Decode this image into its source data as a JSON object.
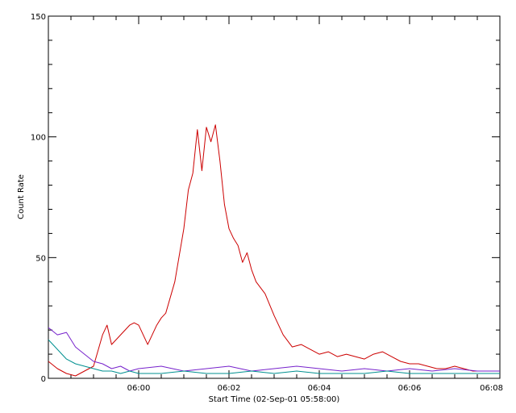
{
  "chart_data": {
    "type": "line",
    "xlabel": "Start Time (02-Sep-01 05:58:00)",
    "ylabel": "Count Rate",
    "ylim": [
      0,
      150
    ],
    "xlim_minutes": [
      0,
      10
    ],
    "x_ticks": [
      {
        "minute": 2,
        "label": "06:00"
      },
      {
        "minute": 4,
        "label": "06:02"
      },
      {
        "minute": 6,
        "label": "06:04"
      },
      {
        "minute": 8,
        "label": "06:06"
      },
      {
        "minute": 10,
        "label": "06:08"
      }
    ],
    "y_ticks": [
      {
        "value": 0,
        "label": "0"
      },
      {
        "value": 50,
        "label": "50"
      },
      {
        "value": 100,
        "label": "100"
      },
      {
        "value": 150,
        "label": "150"
      }
    ],
    "series": [
      {
        "color": "#cc0000",
        "x": [
          0.0,
          0.2,
          0.4,
          0.6,
          0.8,
          1.0,
          1.2,
          1.3,
          1.4,
          1.6,
          1.8,
          1.9,
          2.0,
          2.2,
          2.4,
          2.5,
          2.6,
          2.8,
          3.0,
          3.1,
          3.2,
          3.3,
          3.4,
          3.5,
          3.6,
          3.7,
          3.8,
          3.9,
          4.0,
          4.1,
          4.2,
          4.3,
          4.4,
          4.5,
          4.6,
          4.8,
          5.0,
          5.2,
          5.4,
          5.6,
          5.8,
          6.0,
          6.2,
          6.4,
          6.6,
          6.8,
          7.0,
          7.2,
          7.4,
          7.6,
          7.8,
          8.0,
          8.2,
          8.4,
          8.6,
          8.8,
          9.0,
          9.2,
          9.4,
          9.6,
          9.8,
          10.0
        ],
        "values": [
          7,
          4,
          2,
          1,
          3,
          5,
          18,
          22,
          14,
          18,
          22,
          23,
          22,
          14,
          22,
          25,
          27,
          40,
          62,
          78,
          85,
          103,
          86,
          104,
          98,
          105,
          90,
          72,
          62,
          58,
          55,
          48,
          52,
          45,
          40,
          35,
          26,
          18,
          13,
          14,
          12,
          10,
          11,
          9,
          10,
          9,
          8,
          10,
          11,
          9,
          7,
          6,
          6,
          5,
          4,
          4,
          5,
          4,
          3,
          3,
          3,
          3
        ]
      },
      {
        "color": "#7722cc",
        "x": [
          0.0,
          0.2,
          0.4,
          0.6,
          0.8,
          1.0,
          1.2,
          1.4,
          1.6,
          1.8,
          2.0,
          2.5,
          3.0,
          3.5,
          4.0,
          4.5,
          5.0,
          5.5,
          6.0,
          6.5,
          7.0,
          7.5,
          8.0,
          8.5,
          9.0,
          9.5,
          10.0
        ],
        "values": [
          21,
          18,
          19,
          13,
          10,
          7,
          6,
          4,
          5,
          3,
          4,
          5,
          3,
          4,
          5,
          3,
          4,
          5,
          4,
          3,
          4,
          3,
          4,
          3,
          4,
          3,
          3
        ]
      },
      {
        "color": "#009090",
        "x": [
          0.0,
          0.2,
          0.4,
          0.6,
          0.8,
          1.0,
          1.2,
          1.4,
          1.6,
          1.8,
          2.0,
          2.5,
          3.0,
          3.5,
          4.0,
          4.5,
          5.0,
          5.5,
          6.0,
          6.5,
          7.0,
          7.5,
          8.0,
          8.5,
          9.0,
          9.5,
          10.0
        ],
        "values": [
          16,
          12,
          8,
          6,
          5,
          4,
          3,
          3,
          2,
          3,
          2,
          2,
          3,
          2,
          2,
          3,
          2,
          3,
          2,
          2,
          2,
          3,
          2,
          2,
          2,
          2,
          2
        ]
      }
    ]
  }
}
